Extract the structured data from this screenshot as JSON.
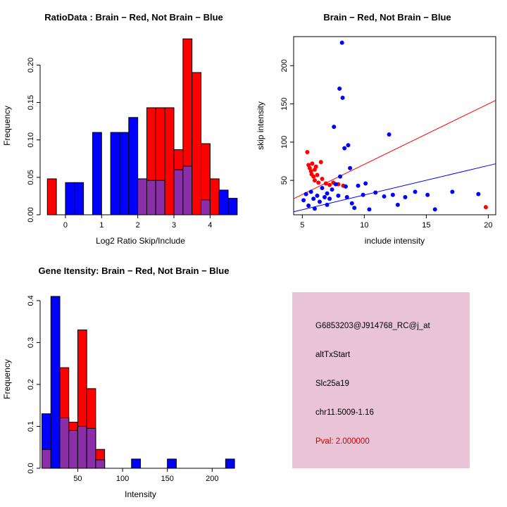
{
  "figure": {
    "background": "#ffffff"
  },
  "colors": {
    "red": "#ff0000",
    "blue": "#0000ff",
    "overlap": "#8b2fa8",
    "axis": "#000000"
  },
  "chart_data": [
    {
      "type": "bar",
      "subtype": "overlaid-histogram",
      "title": "RatioData : Brain − Red, Not Brain − Blue",
      "xlabel": "Log2 Ratio Skip/Include",
      "ylabel": "Frequency",
      "xlim": [
        -0.7,
        4.85
      ],
      "ylim": [
        0,
        0.238
      ],
      "xticks": [
        0,
        1,
        2,
        3,
        4
      ],
      "xtick_labels": [
        "0",
        "1",
        "2",
        "3",
        "4"
      ],
      "yticks": [
        0,
        0.05,
        0.1,
        0.15,
        0.2
      ],
      "ytick_labels": [
        "0.00",
        "0.05",
        "0.10",
        "0.15",
        "0.20"
      ],
      "legend": [
        {
          "name": "Brain",
          "color": "red"
        },
        {
          "name": "Not Brain",
          "color": "blue"
        }
      ],
      "bin_width": 0.25,
      "bins": [
        {
          "x0": -0.5,
          "red": 0.048,
          "blue": 0
        },
        {
          "x0": 0.0,
          "red": 0,
          "blue": 0.043
        },
        {
          "x0": 0.25,
          "red": 0,
          "blue": 0.043
        },
        {
          "x0": 0.75,
          "red": 0,
          "blue": 0.11
        },
        {
          "x0": 1.25,
          "red": 0,
          "blue": 0.11
        },
        {
          "x0": 1.5,
          "red": 0,
          "blue": 0.11
        },
        {
          "x0": 1.75,
          "red": 0,
          "blue": 0.13
        },
        {
          "x0": 2.0,
          "red": 0.048,
          "blue": 0.048
        },
        {
          "x0": 2.25,
          "red": 0.143,
          "blue": 0.046
        },
        {
          "x0": 2.5,
          "red": 0.143,
          "blue": 0.046
        },
        {
          "x0": 2.75,
          "red": 0.143,
          "blue": 0
        },
        {
          "x0": 3.0,
          "red": 0.087,
          "blue": 0.06
        },
        {
          "x0": 3.25,
          "red": 0.235,
          "blue": 0.065
        },
        {
          "x0": 3.5,
          "red": 0.19,
          "blue": 0
        },
        {
          "x0": 3.75,
          "red": 0.095,
          "blue": 0.02
        },
        {
          "x0": 4.0,
          "red": 0.048,
          "blue": 0
        },
        {
          "x0": 4.25,
          "red": 0,
          "blue": 0.033
        },
        {
          "x0": 4.5,
          "red": 0,
          "blue": 0.022
        }
      ]
    },
    {
      "type": "scatter",
      "title": "Brain − Red, Not Brain − Blue",
      "xlabel": "include intensity",
      "ylabel": "skip intensity",
      "xlim": [
        4.3,
        20.6
      ],
      "ylim": [
        5,
        238
      ],
      "xticks": [
        5,
        10,
        15,
        20
      ],
      "xtick_labels": [
        "5",
        "10",
        "15",
        "20"
      ],
      "yticks": [
        50,
        100,
        150,
        200
      ],
      "ytick_labels": [
        "50",
        "100",
        "150",
        "200"
      ],
      "lines": [
        {
          "color": "red",
          "intercept": -8.0,
          "slope": 7.9
        },
        {
          "color": "blue",
          "intercept": -7.6,
          "slope": 3.85
        }
      ],
      "series": [
        {
          "name": "Brain",
          "color": "red",
          "points": [
            [
              5.4,
              87
            ],
            [
              5.5,
              70
            ],
            [
              5.6,
              66
            ],
            [
              5.7,
              62
            ],
            [
              5.75,
              58
            ],
            [
              5.8,
              72
            ],
            [
              5.9,
              55
            ],
            [
              6.0,
              64
            ],
            [
              6.0,
              50
            ],
            [
              6.1,
              68
            ],
            [
              6.2,
              57
            ],
            [
              6.3,
              47
            ],
            [
              6.5,
              74
            ],
            [
              6.6,
              52
            ],
            [
              6.9,
              46
            ],
            [
              7.2,
              44
            ],
            [
              7.5,
              47
            ],
            [
              7.9,
              45
            ],
            [
              8.3,
              43
            ],
            [
              19.8,
              15
            ]
          ]
        },
        {
          "name": "Not Brain",
          "color": "blue",
          "points": [
            [
              5.1,
              24
            ],
            [
              5.3,
              32
            ],
            [
              5.5,
              17
            ],
            [
              5.7,
              35
            ],
            [
              5.9,
              26
            ],
            [
              6.0,
              13
            ],
            [
              6.2,
              30
            ],
            [
              6.4,
              22
            ],
            [
              6.6,
              40
            ],
            [
              6.8,
              28
            ],
            [
              7.0,
              18
            ],
            [
              7.0,
              33
            ],
            [
              7.2,
              26
            ],
            [
              7.4,
              38
            ],
            [
              7.55,
              120
            ],
            [
              7.7,
              45
            ],
            [
              7.9,
              30
            ],
            [
              8.0,
              170
            ],
            [
              8.05,
              55
            ],
            [
              8.2,
              230
            ],
            [
              8.25,
              158
            ],
            [
              8.4,
              92
            ],
            [
              8.5,
              42
            ],
            [
              8.6,
              28
            ],
            [
              8.7,
              96
            ],
            [
              8.85,
              66
            ],
            [
              9.0,
              20
            ],
            [
              9.2,
              14
            ],
            [
              9.5,
              43
            ],
            [
              9.9,
              31
            ],
            [
              10.1,
              46
            ],
            [
              10.4,
              12
            ],
            [
              10.9,
              34
            ],
            [
              11.6,
              29
            ],
            [
              12.0,
              110
            ],
            [
              12.3,
              31
            ],
            [
              12.7,
              18
            ],
            [
              13.3,
              28
            ],
            [
              14.1,
              35
            ],
            [
              15.1,
              31
            ],
            [
              15.7,
              12
            ],
            [
              17.1,
              35
            ],
            [
              19.2,
              32
            ]
          ]
        }
      ]
    },
    {
      "type": "bar",
      "subtype": "overlaid-histogram",
      "title": "Gene Itensity: Brain − Red, Not Brain − Blue",
      "xlabel": "Intensity",
      "ylabel": "Frequency",
      "xlim": [
        8,
        232
      ],
      "ylim": [
        0,
        0.425
      ],
      "xticks": [
        50,
        100,
        150,
        200
      ],
      "xtick_labels": [
        "50",
        "100",
        "150",
        "200"
      ],
      "yticks": [
        0,
        0.1,
        0.2,
        0.3,
        0.4
      ],
      "ytick_labels": [
        "0.0",
        "0.1",
        "0.2",
        "0.3",
        "0.4"
      ],
      "legend": [
        {
          "name": "Brain",
          "color": "red"
        },
        {
          "name": "Not Brain",
          "color": "blue"
        }
      ],
      "bin_width": 10,
      "bins": [
        {
          "x0": 10,
          "red": 0.045,
          "blue": 0.13
        },
        {
          "x0": 20,
          "red": 0,
          "blue": 0.41
        },
        {
          "x0": 30,
          "red": 0.24,
          "blue": 0.12
        },
        {
          "x0": 40,
          "red": 0.11,
          "blue": 0.09
        },
        {
          "x0": 50,
          "red": 0.33,
          "blue": 0.1
        },
        {
          "x0": 60,
          "red": 0.19,
          "blue": 0.095
        },
        {
          "x0": 70,
          "red": 0.045,
          "blue": 0.02
        },
        {
          "x0": 110,
          "red": 0,
          "blue": 0.022
        },
        {
          "x0": 150,
          "red": 0,
          "blue": 0.022
        },
        {
          "x0": 215,
          "red": 0,
          "blue": 0.022
        }
      ]
    }
  ],
  "info_panel": {
    "background": "#e8c4d6",
    "probe_id": "G6853203@J914768_RC@j_at",
    "event_type": "altTxStart",
    "gene": "Slc25a19",
    "location": "chr11.5009-1.16",
    "pval": "Pval: 2.000000",
    "pval_color": "#cc0000"
  }
}
